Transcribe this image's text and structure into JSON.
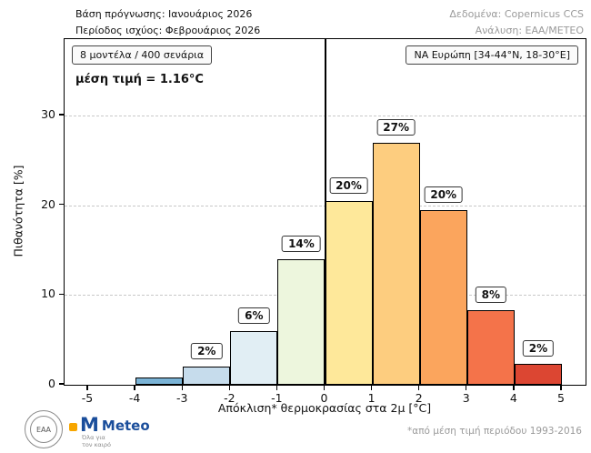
{
  "header": {
    "left_line1": "Βάση πρόγνωσης: Ιανουάριος 2026",
    "left_line2": "Περίοδος ισχύος: Φεβρουάριος 2026",
    "right_line1": "Δεδομένα: Copernicus CCS",
    "right_line2": "Ανάλυση: ΕΑΑ/ΜΕΤΕΟ"
  },
  "annotations": {
    "models_box": "8 μοντέλα / 400 σενάρια",
    "mean_label": "μέση τιμή = 1.16°C",
    "region_box": "ΝΑ Ευρώπη [34-44°N, 18-30°E]"
  },
  "footer": {
    "footnote": "*από μέση τιμή περιόδου 1993-2016",
    "seal_text": "ΕΑΑ",
    "meteo_name": "Meteo",
    "meteo_tagline_line1": "Όλα για",
    "meteo_tagline_line2": "τον καιρό"
  },
  "chart_data": {
    "type": "bar",
    "title": "",
    "xlabel": "Απόκλιση* θερμοκρασίας στα 2μ [°C]",
    "ylabel": "Πιθανότητα [%]",
    "xlim": [
      -5.5,
      5.5
    ],
    "ylim": [
      0,
      38.5
    ],
    "xticks": [
      -5,
      -4,
      -3,
      -2,
      -1,
      0,
      1,
      2,
      3,
      4,
      5
    ],
    "yticks": [
      0,
      10,
      20,
      30
    ],
    "grid": "horizontal-dashed",
    "zero_line_x": 0,
    "bar_edge_color": "#000000",
    "bins": [
      {
        "x0": -4,
        "x1": -3,
        "value": 0.8,
        "label": "",
        "color": "#7ab3d6"
      },
      {
        "x0": -3,
        "x1": -2,
        "value": 2.0,
        "label": "2%",
        "color": "#c6dcec"
      },
      {
        "x0": -2,
        "x1": -1,
        "value": 6.0,
        "label": "6%",
        "color": "#e1eef4"
      },
      {
        "x0": -1,
        "x1": 0,
        "value": 14.0,
        "label": "14%",
        "color": "#edf6dd"
      },
      {
        "x0": 0,
        "x1": 1,
        "value": 20.5,
        "label": "20%",
        "color": "#fee89a"
      },
      {
        "x0": 1,
        "x1": 2,
        "value": 27.0,
        "label": "27%",
        "color": "#fdcd7f"
      },
      {
        "x0": 2,
        "x1": 3,
        "value": 19.5,
        "label": "20%",
        "color": "#fba55d"
      },
      {
        "x0": 3,
        "x1": 4,
        "value": 8.3,
        "label": "8%",
        "color": "#f4734a"
      },
      {
        "x0": 4,
        "x1": 5,
        "value": 2.3,
        "label": "2%",
        "color": "#dc4632"
      }
    ]
  }
}
